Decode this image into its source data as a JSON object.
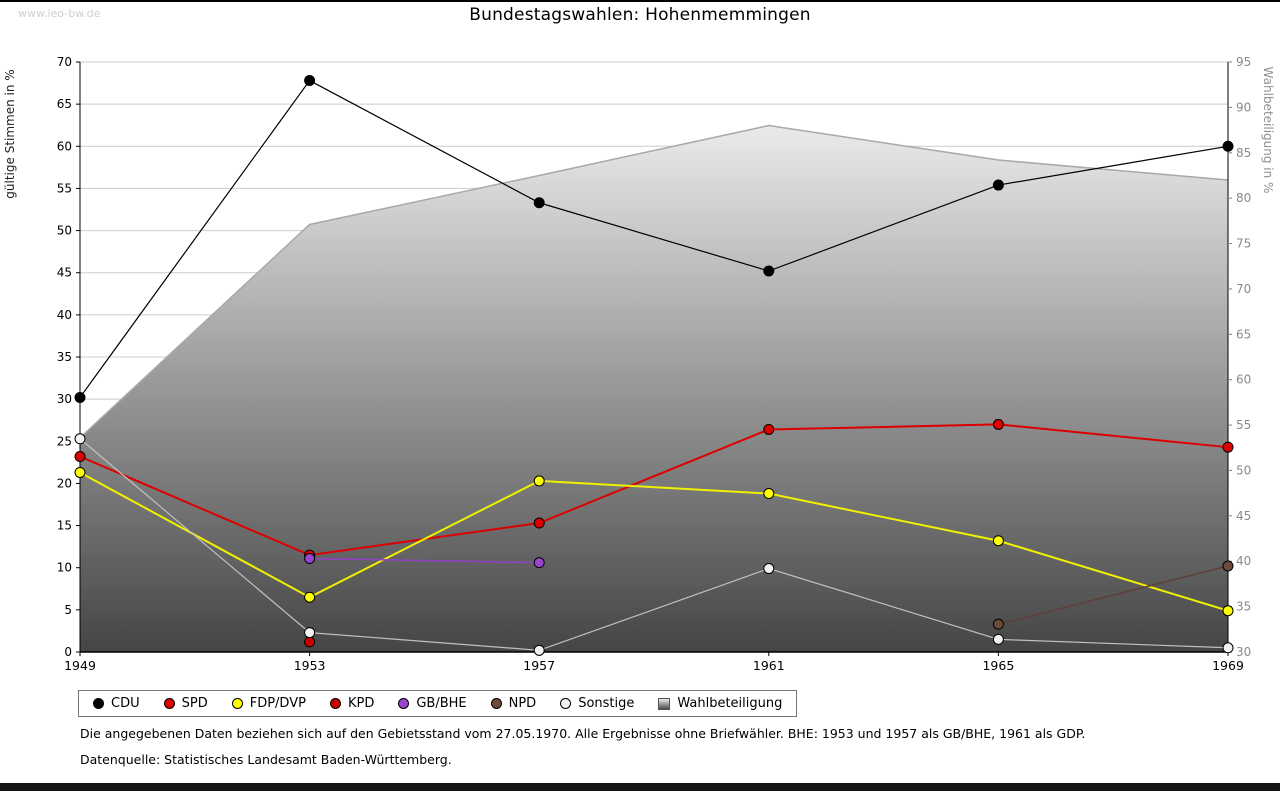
{
  "watermark": "www.leo-bw.de",
  "title": "Bundestagswahlen: Hohenmemmingen",
  "footnotes": {
    "line1": "Die angegebenen Daten beziehen sich auf den Gebietsstand vom 27.05.1970. Alle Ergebnisse ohne Briefwähler. BHE: 1953 und 1957 als GB/BHE, 1961 als GDP.",
    "line2": "Datenquelle: Statistisches Landesamt Baden-Württemberg."
  },
  "chart_data": {
    "type": "line",
    "title": "Bundestagswahlen: Hohenmemmingen",
    "x": [
      1949,
      1953,
      1957,
      1961,
      1965,
      1969
    ],
    "left_axis": {
      "label": "gültige Stimmen in %",
      "range": [
        0,
        70
      ],
      "tick_step": 5
    },
    "right_axis": {
      "label": "Wahlbeteiligung in %",
      "range": [
        30,
        95
      ],
      "tick_step": 5
    },
    "grid": "horizontal",
    "legend_position": "bottom-left",
    "series": [
      {
        "name": "CDU",
        "axis": "left",
        "color": "#000000",
        "marker_fill": "#000000",
        "line_width": 1.2,
        "values": [
          30.2,
          67.8,
          53.3,
          45.2,
          55.4,
          60.0
        ]
      },
      {
        "name": "SPD",
        "axis": "left",
        "color": "#dd0000",
        "marker_fill": "#dd0000",
        "line_width": 2,
        "values": [
          23.2,
          11.5,
          15.3,
          26.4,
          27.0,
          24.3
        ]
      },
      {
        "name": "FDP/DVP",
        "axis": "left",
        "color": "#f0f000",
        "marker_fill": "#ffff00",
        "line_width": 2,
        "values": [
          21.3,
          6.5,
          20.3,
          18.8,
          13.2,
          4.9
        ]
      },
      {
        "name": "KPD",
        "axis": "left",
        "color": "#aa0000",
        "marker_fill": "#cc0000",
        "line_width": 1.5,
        "values": [
          null,
          1.2,
          null,
          null,
          null,
          null
        ]
      },
      {
        "name": "GB/BHE",
        "axis": "left",
        "color": "#9140c8",
        "marker_fill": "#9945cc",
        "line_width": 1.5,
        "values": [
          null,
          11.1,
          10.6,
          null,
          null,
          null
        ]
      },
      {
        "name": "NPD",
        "axis": "left",
        "color": "#5d4037",
        "marker_fill": "#6b4a3a",
        "line_width": 1.5,
        "values": [
          null,
          null,
          null,
          null,
          3.3,
          10.2
        ]
      },
      {
        "name": "Sonstige",
        "axis": "left",
        "color": "#c0c0c0",
        "marker_fill": "#f2f2f2",
        "line_width": 1.2,
        "values": [
          25.3,
          2.3,
          0.2,
          9.9,
          1.5,
          0.5
        ]
      }
    ],
    "area_series": {
      "name": "Wahlbeteiligung",
      "axis": "right",
      "stroke": "#a8a8a8",
      "gradient": [
        "#fefefe",
        "#454545"
      ],
      "values": [
        53.6,
        77.1,
        82.5,
        88.0,
        84.2,
        82.0
      ]
    }
  }
}
